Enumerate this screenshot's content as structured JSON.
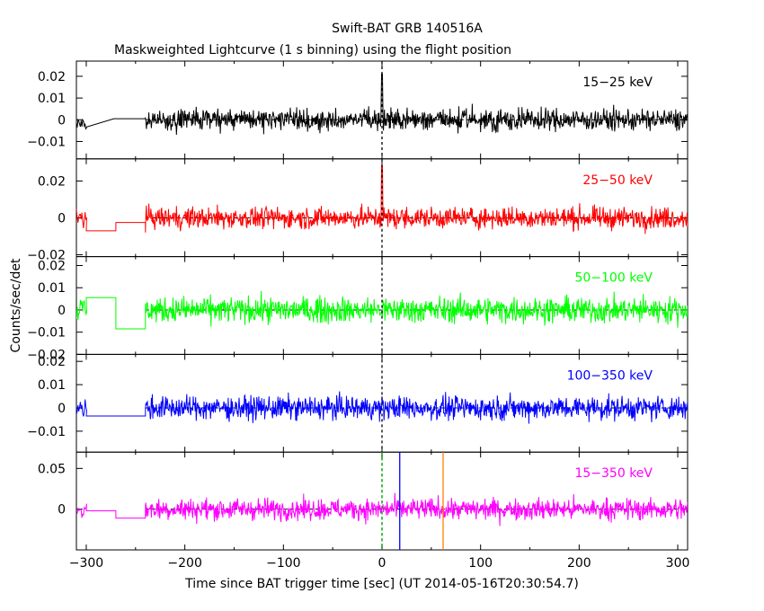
{
  "title": "Swift-BAT GRB 140516A",
  "subtitle": "Maskweighted Lightcurve (1 s binning) using the flight position",
  "chart_data": {
    "type": "line",
    "xlabel": "Time since BAT trigger time [sec] (UT 2014-05-16T20:30:54.7)",
    "ylabel": "Counts/sec/det",
    "xlim": [
      -310,
      310
    ],
    "x_ticks": [
      -300,
      -200,
      -100,
      0,
      100,
      200,
      300
    ],
    "x_tick_labels": [
      "−300",
      "−200",
      "−100",
      "0",
      "100",
      "200",
      "300"
    ],
    "panels": [
      {
        "name": "15-25 keV",
        "label": "15−25 keV",
        "color": "#000000",
        "ylim": [
          -0.018,
          0.027
        ],
        "yticks": [
          -0.01,
          0,
          0.01,
          0.02
        ],
        "ytick_labels": [
          "−0.01",
          "0",
          "0.01",
          "0.02"
        ],
        "noise_amplitude": 0.0065,
        "flat_segments": [
          [
            -272,
            -240,
            0.0005
          ]
        ],
        "spikes": [
          [
            0,
            0.021
          ]
        ]
      },
      {
        "name": "25-50 keV",
        "label": "25−50 keV",
        "color": "#ff0000",
        "ylim": [
          -0.021,
          0.032
        ],
        "yticks": [
          -0.02,
          0,
          0.02
        ],
        "ytick_labels": [
          "−0.02",
          "0",
          "0.02"
        ],
        "noise_amplitude": 0.0075,
        "flat_segments": [
          [
            -300,
            -270,
            -0.007
          ],
          [
            -270,
            -240,
            -0.0025
          ]
        ],
        "spikes": [
          [
            0,
            0.028
          ]
        ]
      },
      {
        "name": "50-100 keV",
        "label": "50−100 keV",
        "color": "#00ff00",
        "ylim": [
          -0.02,
          0.024
        ],
        "yticks": [
          -0.02,
          -0.01,
          0,
          0.01,
          0.02
        ],
        "ytick_labels": [
          "−0.02",
          "−0.01",
          "0",
          "0.01",
          "0.02"
        ],
        "noise_amplitude": 0.0075,
        "flat_segments": [
          [
            -300,
            -270,
            0.0055
          ],
          [
            -270,
            -240,
            -0.0085
          ]
        ],
        "spikes": []
      },
      {
        "name": "100-350 keV",
        "label": "100−350 keV",
        "color": "#0000ff",
        "ylim": [
          -0.019,
          0.023
        ],
        "yticks": [
          -0.01,
          0,
          0.01,
          0.02
        ],
        "ytick_labels": [
          "−0.01",
          "0",
          "0.01",
          "0.02"
        ],
        "noise_amplitude": 0.0065,
        "flat_segments": [
          [
            -300,
            -240,
            -0.0035
          ]
        ],
        "spikes": []
      },
      {
        "name": "15-350 keV",
        "label": "15−350 keV",
        "color": "#ff00ff",
        "ylim": [
          -0.05,
          0.07
        ],
        "yticks": [
          0,
          0.05
        ],
        "ytick_labels": [
          "0",
          "0.05"
        ],
        "noise_amplitude": 0.017,
        "flat_segments": [
          [
            -300,
            -270,
            -0.002
          ],
          [
            -270,
            -240,
            -0.011
          ]
        ],
        "spikes": []
      }
    ],
    "vertical_markers": [
      {
        "x": 0,
        "color": "#000000",
        "style": "dashed",
        "panels": "all"
      },
      {
        "x": 0,
        "color": "#00cc00",
        "style": "dashed",
        "panels": [
          4
        ]
      },
      {
        "x": 18,
        "color": "#0000ff",
        "style": "solid",
        "panels": [
          4
        ]
      },
      {
        "x": 62,
        "color": "#ff8000",
        "style": "solid",
        "panels": [
          4
        ]
      }
    ],
    "zero_line": {
      "style": "dashed",
      "start_x": -240
    },
    "legend": "per-panel label at top-right",
    "grid": false
  }
}
